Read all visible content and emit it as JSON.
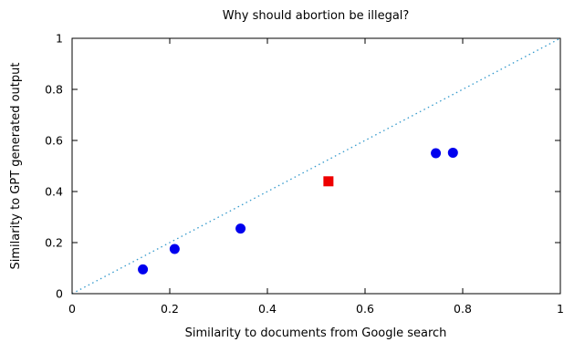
{
  "chart_data": {
    "type": "scatter",
    "title": "Why should abortion be illegal?",
    "xlabel": "Similarity to documents from Google search",
    "ylabel": "Similarity to GPT generated output",
    "xlim": [
      0,
      1
    ],
    "ylim": [
      0,
      1
    ],
    "x_ticks": [
      "0",
      "0.2",
      "0.4",
      "0.6",
      "0.8",
      "1"
    ],
    "y_ticks": [
      "0",
      "0.2",
      "0.4",
      "0.6",
      "0.8",
      "1"
    ],
    "grid": false,
    "reference_line": {
      "style": "dotted",
      "from": [
        0,
        0
      ],
      "to": [
        1,
        1
      ],
      "color": "#3399cc"
    },
    "series": [
      {
        "marker": "circle",
        "color": "#0000ee",
        "points": [
          {
            "x": 0.145,
            "y": 0.095
          },
          {
            "x": 0.21,
            "y": 0.175
          },
          {
            "x": 0.345,
            "y": 0.255
          },
          {
            "x": 0.745,
            "y": 0.55
          },
          {
            "x": 0.78,
            "y": 0.552
          }
        ]
      },
      {
        "marker": "square",
        "color": "#ee0000",
        "points": [
          {
            "x": 0.525,
            "y": 0.44
          }
        ]
      }
    ]
  }
}
